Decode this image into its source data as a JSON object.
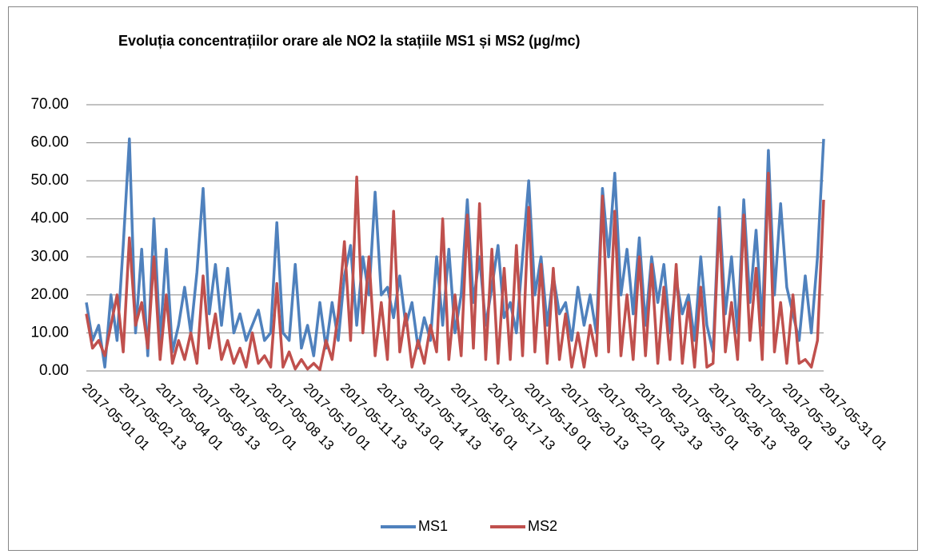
{
  "chart_data": {
    "type": "line",
    "title": "Evoluția concentrațiilor orare ale NO2 la stațiile MS1 și MS2 (µg/mc)",
    "categories": [
      "2017-05-01 01",
      null,
      null,
      null,
      null,
      null,
      "2017-05-02 13",
      null,
      null,
      null,
      null,
      null,
      "2017-05-04 01",
      null,
      null,
      null,
      null,
      null,
      "2017-05-05 13",
      null,
      null,
      null,
      null,
      null,
      "2017-05-07 01",
      null,
      null,
      null,
      null,
      null,
      "2017-05-08 13",
      null,
      null,
      null,
      null,
      null,
      "2017-05-10 01",
      null,
      null,
      null,
      null,
      null,
      "2017-05-11 13",
      null,
      null,
      null,
      null,
      null,
      "2017-05-13 01",
      null,
      null,
      null,
      null,
      null,
      "2017-05-14 13",
      null,
      null,
      null,
      null,
      null,
      "2017-05-16 01",
      null,
      null,
      null,
      null,
      null,
      "2017-05-17 13",
      null,
      null,
      null,
      null,
      null,
      "2017-05-19 01",
      null,
      null,
      null,
      null,
      null,
      "2017-05-20 13",
      null,
      null,
      null,
      null,
      null,
      "2017-05-22 01",
      null,
      null,
      null,
      null,
      null,
      "2017-05-23 13",
      null,
      null,
      null,
      null,
      null,
      "2017-05-25 01",
      null,
      null,
      null,
      null,
      null,
      "2017-05-26 13",
      null,
      null,
      null,
      null,
      null,
      "2017-05-28 01",
      null,
      null,
      null,
      null,
      null,
      "2017-05-29 13",
      null,
      null,
      null,
      null,
      null,
      "2017-05-31 01"
    ],
    "series": [
      {
        "name": "MS1",
        "color": "#4f81bd",
        "values": [
          18,
          8,
          12,
          1,
          20,
          8,
          33,
          61,
          10,
          32,
          4,
          40,
          8,
          32,
          5,
          12,
          22,
          10,
          26,
          48,
          15,
          28,
          12,
          27,
          10,
          15,
          8,
          12,
          16,
          8,
          10,
          39,
          10,
          8,
          28,
          6,
          12,
          4,
          18,
          6,
          18,
          8,
          25,
          33,
          12,
          30,
          20,
          47,
          20,
          22,
          14,
          25,
          12,
          18,
          6,
          14,
          8,
          30,
          12,
          32,
          10,
          20,
          45,
          18,
          30,
          12,
          22,
          33,
          14,
          18,
          10,
          30,
          50,
          20,
          30,
          12,
          25,
          15,
          18,
          8,
          22,
          12,
          20,
          10,
          48,
          30,
          52,
          20,
          32,
          15,
          35,
          12,
          30,
          18,
          28,
          10,
          24,
          15,
          20,
          8,
          30,
          12,
          5,
          43,
          15,
          30,
          10,
          45,
          18,
          37,
          12,
          58,
          20,
          44,
          22,
          15,
          8,
          25,
          10,
          30,
          61
        ]
      },
      {
        "name": "MS2",
        "color": "#c0504d",
        "values": [
          15,
          6,
          8,
          4,
          12,
          20,
          5,
          35,
          12,
          18,
          6,
          30,
          3,
          20,
          2,
          8,
          3,
          10,
          2,
          25,
          6,
          15,
          3,
          8,
          2,
          6,
          1,
          10,
          2,
          4,
          1,
          23,
          1,
          5,
          0.5,
          3,
          0.5,
          2,
          0.3,
          8,
          3,
          15,
          34,
          8,
          51,
          10,
          30,
          4,
          18,
          3,
          42,
          5,
          15,
          1,
          8,
          2,
          12,
          5,
          40,
          3,
          20,
          4,
          41,
          6,
          44,
          3,
          32,
          2,
          27,
          3,
          33,
          4,
          43,
          5,
          28,
          2,
          27,
          3,
          15,
          1,
          10,
          1,
          12,
          4,
          46,
          5,
          42,
          4,
          20,
          3,
          30,
          4,
          28,
          2,
          22,
          3,
          28,
          2,
          18,
          1,
          22,
          1,
          2,
          40,
          5,
          18,
          3,
          41,
          8,
          27,
          3,
          52,
          5,
          18,
          2,
          20,
          2,
          3,
          1,
          8,
          45
        ]
      }
    ],
    "ylim": [
      0,
      70
    ],
    "yticks": [
      {
        "value": 0,
        "label": "0.00"
      },
      {
        "value": 10,
        "label": "10.00"
      },
      {
        "value": 20,
        "label": "20.00"
      },
      {
        "value": 30,
        "label": "30.00"
      },
      {
        "value": 40,
        "label": "40.00"
      },
      {
        "value": 50,
        "label": "50.00"
      },
      {
        "value": 60,
        "label": "60.00"
      },
      {
        "value": 70,
        "label": "70.00"
      }
    ],
    "grid": true,
    "legend": "bottom"
  }
}
